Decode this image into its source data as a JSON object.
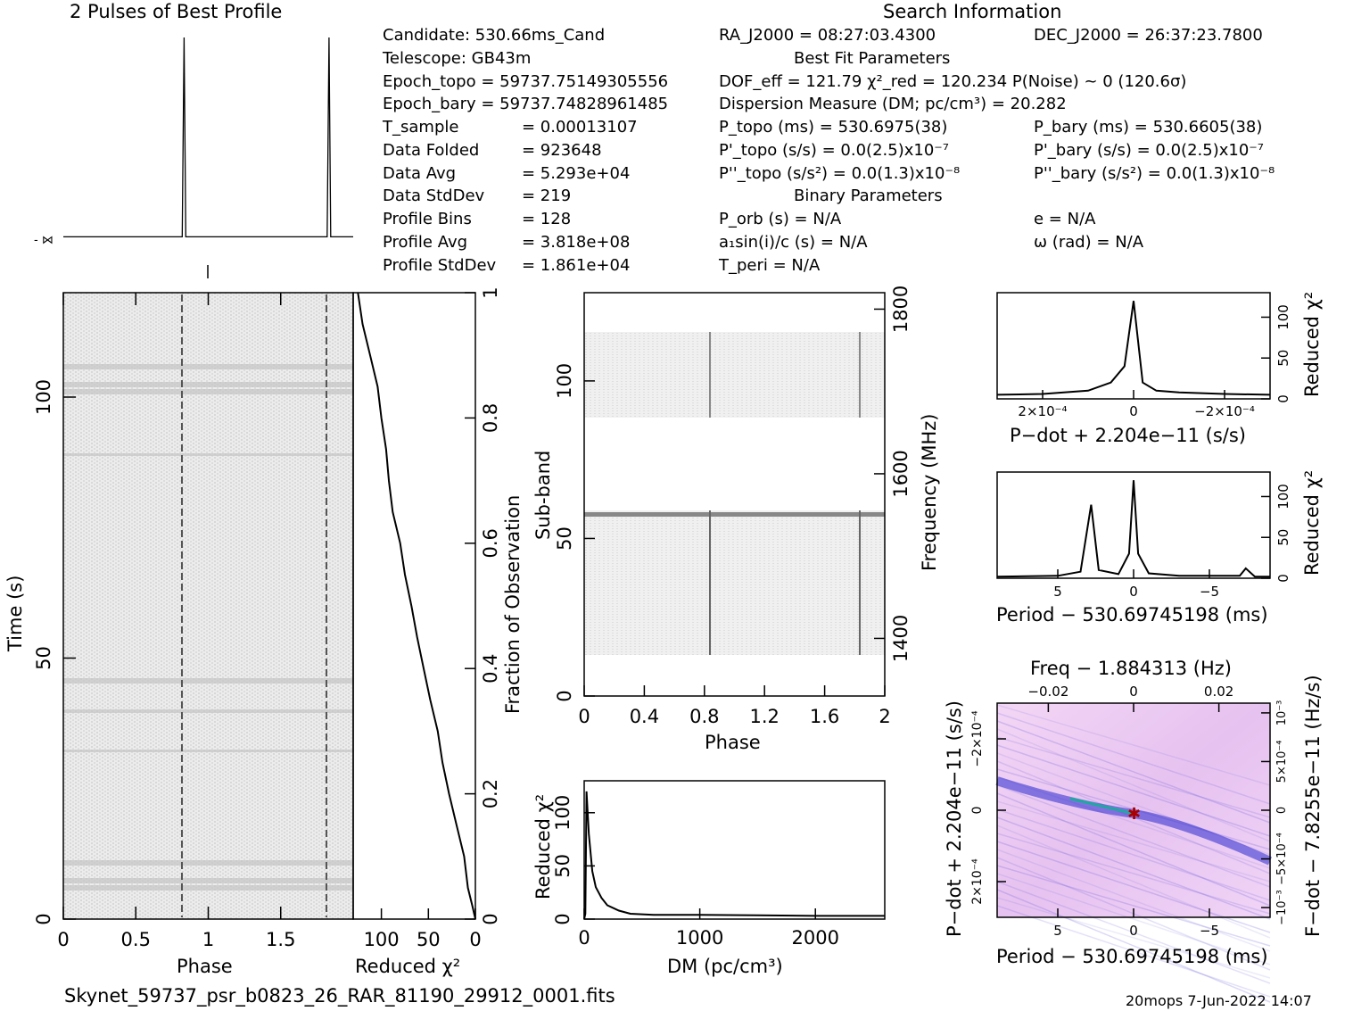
{
  "header": {
    "profile_title": "2 Pulses of Best Profile",
    "search_title": "Search Information",
    "best_fit_title": "Best Fit Parameters",
    "binary_title": "Binary Parameters"
  },
  "candidate_info": [
    {
      "label": "Candidate:  530.66ms_Cand"
    },
    {
      "label": "Telescope:  GB43m"
    },
    {
      "label": "Epoch_topo = 59737.75149305556"
    },
    {
      "label": "Epoch_bary = 59737.74828961485"
    },
    {
      "label": "T_sample",
      "value": "=  0.00013107"
    },
    {
      "label": "Data Folded",
      "value": "=  923648"
    },
    {
      "label": "Data Avg",
      "value": "=  5.293e+04"
    },
    {
      "label": "Data StdDev",
      "value": "=  219"
    },
    {
      "label": "Profile Bins",
      "value": "=  128"
    },
    {
      "label": "Profile Avg",
      "value": "=  3.818e+08"
    },
    {
      "label": "Profile StdDev",
      "value": "=  1.861e+04"
    }
  ],
  "search_info": {
    "ra": "RA_J2000 = 08:27:03.4300",
    "dec": "DEC_J2000 = 26:37:23.7800",
    "dof": "DOF_eff = 121.79   χ²_red = 120.234   P(Noise) ~ 0    (120.6σ)",
    "dm": "Dispersion Measure (DM; pc/cm³) = 20.282",
    "p_topo": "P_topo (ms) =  530.6975(38)",
    "p_bary": "P_bary (ms) =  530.6605(38)",
    "pd_topo": "P'_topo (s/s) = 0.0(2.5)x10⁻⁷",
    "pd_bary": "P'_bary (s/s) = 0.0(2.5)x10⁻⁷",
    "pdd_topo": "P''_topo (s/s²) = 0.0(1.3)x10⁻⁸",
    "pdd_bary": "P''_bary (s/s²) = 0.0(1.3)x10⁻⁸",
    "porb": "P_orb (s) = N/A",
    "e": "e = N/A",
    "a1": "a₁sin(i)/c (s) = N/A",
    "omega": "ω (rad) = N/A",
    "tperi": "T_peri = N/A"
  },
  "footer": {
    "filename": "Skynet_59737_psr_b0823_26_RAR_81190_29912_0001.fits",
    "stamp": "20mops  7-Jun-2022 14:07"
  },
  "colors": {
    "axis": "#000000",
    "greyscale": "#808080",
    "ppdot": "#7a6fe0"
  },
  "chart_data": [
    {
      "type": "line",
      "title": "2 Pulses of Best Profile",
      "x_label": "",
      "y_label": "",
      "x": [
        0,
        0.82,
        0.833,
        0.845,
        1.0,
        1.82,
        1.833,
        1.845,
        2.0
      ],
      "y": [
        0.02,
        0.02,
        1.0,
        0.02,
        0.02,
        0.02,
        1.0,
        0.02,
        0.02
      ]
    },
    {
      "type": "heatmap",
      "name": "time-phase",
      "xlabel": "Phase",
      "ylabel": "Time (s)",
      "x_range": [
        0,
        2
      ],
      "y_range": [
        0,
        120
      ],
      "x_ticks": [
        "0",
        "0.5",
        "1",
        "1.5"
      ],
      "y_ticks": [
        "0",
        "50",
        "100"
      ],
      "pulse_phases": [
        0.83,
        1.83
      ]
    },
    {
      "type": "line",
      "name": "reduced-chisq-vs-time",
      "xlabel": "Reduced χ²",
      "ylabel": "Fraction of Observation",
      "x_ticks": [
        "100",
        "50",
        "0"
      ],
      "y_ticks": [
        "0",
        "0.2",
        "0.4",
        "0.6",
        "0.8",
        "1"
      ],
      "x_range": [
        130,
        0
      ],
      "points": [
        [
          0,
          0
        ],
        [
          3,
          0.02
        ],
        [
          8,
          0.05
        ],
        [
          12,
          0.1
        ],
        [
          20,
          0.15
        ],
        [
          28,
          0.2
        ],
        [
          35,
          0.25
        ],
        [
          40,
          0.3
        ],
        [
          48,
          0.35
        ],
        [
          55,
          0.4
        ],
        [
          62,
          0.45
        ],
        [
          68,
          0.5
        ],
        [
          75,
          0.55
        ],
        [
          80,
          0.6
        ],
        [
          88,
          0.65
        ],
        [
          92,
          0.7
        ],
        [
          95,
          0.75
        ],
        [
          100,
          0.8
        ],
        [
          104,
          0.85
        ],
        [
          112,
          0.9
        ],
        [
          120,
          0.95
        ],
        [
          125,
          1.0
        ]
      ]
    },
    {
      "type": "heatmap",
      "name": "subband-phase",
      "xlabel": "Phase",
      "ylabel": "Sub-band",
      "y2label": "Frequency (MHz)",
      "x_ticks": [
        "0",
        "0.4",
        "0.8",
        "1.2",
        "1.6",
        "2"
      ],
      "y_ticks": [
        "0",
        "50",
        "100"
      ],
      "y2_ticks": [
        "1400",
        "1600",
        "1800"
      ],
      "x_range": [
        0,
        2
      ],
      "y_range": [
        0,
        128
      ],
      "masked_subbands": [
        [
          0,
          14
        ],
        [
          60,
          88
        ],
        [
          116,
          128
        ]
      ]
    },
    {
      "type": "line",
      "name": "chisq-vs-dm",
      "xlabel": "DM (pc/cm³)",
      "ylabel": "Reduced χ²",
      "x_ticks": [
        "0",
        "1000",
        "2000"
      ],
      "y_ticks": [
        "0",
        "50",
        "100"
      ],
      "x_range": [
        0,
        2600
      ],
      "y_range": [
        0,
        130
      ],
      "points": [
        [
          0,
          0
        ],
        [
          10,
          5
        ],
        [
          20,
          120
        ],
        [
          40,
          80
        ],
        [
          70,
          45
        ],
        [
          100,
          30
        ],
        [
          150,
          20
        ],
        [
          200,
          13
        ],
        [
          300,
          8
        ],
        [
          400,
          5
        ],
        [
          600,
          4
        ],
        [
          1000,
          4
        ],
        [
          1500,
          3.5
        ],
        [
          2000,
          3
        ],
        [
          2600,
          3
        ]
      ]
    },
    {
      "type": "line",
      "name": "chisq-vs-pdot",
      "xlabel": "P−dot + 2.204e−11 (s/s)",
      "ylabel": "Reduced χ²",
      "x_ticks": [
        "2×10⁻⁴",
        "0",
        "−2×10⁻⁴"
      ],
      "y_ticks": [
        "0",
        "50",
        "100"
      ],
      "x_range": [
        0.0003,
        -0.0003
      ],
      "y_range": [
        0,
        130
      ],
      "points": [
        [
          0.0003,
          5
        ],
        [
          0.0002,
          6
        ],
        [
          0.0001,
          10
        ],
        [
          5e-05,
          20
        ],
        [
          2e-05,
          40
        ],
        [
          0,
          120
        ],
        [
          -2e-05,
          20
        ],
        [
          -5e-05,
          10
        ],
        [
          -0.0001,
          8
        ],
        [
          -0.0002,
          6
        ],
        [
          -0.0003,
          5
        ]
      ]
    },
    {
      "type": "line",
      "name": "chisq-vs-period",
      "xlabel": "Period − 530.69745198 (ms)",
      "ylabel": "Reduced χ²",
      "x_ticks": [
        "5",
        "0",
        "−5"
      ],
      "y_ticks": [
        "0",
        "50",
        "100"
      ],
      "x_range": [
        9,
        -9
      ],
      "y_range": [
        0,
        130
      ],
      "points": [
        [
          9,
          2
        ],
        [
          5,
          3
        ],
        [
          3.5,
          8
        ],
        [
          2.8,
          90
        ],
        [
          2.3,
          10
        ],
        [
          1,
          5
        ],
        [
          0.3,
          30
        ],
        [
          0,
          120
        ],
        [
          -0.3,
          30
        ],
        [
          -1,
          6
        ],
        [
          -3,
          3
        ],
        [
          -7,
          3
        ],
        [
          -7.4,
          12
        ],
        [
          -8,
          2
        ],
        [
          -9,
          2
        ]
      ]
    },
    {
      "type": "heatmap",
      "name": "period-pdot",
      "title": "Freq − 1.884313 (Hz)",
      "xlabel": "Period − 530.69745198 (ms)",
      "ylabel": "P−dot + 2.204e−11 (s/s)",
      "y2label": "F−dot − 7.8255e−11 (Hz/s)",
      "x_ticks": [
        "5",
        "0",
        "−5"
      ],
      "x2_ticks": [
        "−0.02",
        "0",
        "0.02"
      ],
      "y_ticks": [
        "2×10⁻⁴",
        "0",
        "−2×10⁻⁴"
      ],
      "y2_ticks": [
        "−10⁻³",
        "−5×10⁻⁴",
        "0",
        "5×10⁻⁴",
        "10⁻³"
      ]
    }
  ]
}
